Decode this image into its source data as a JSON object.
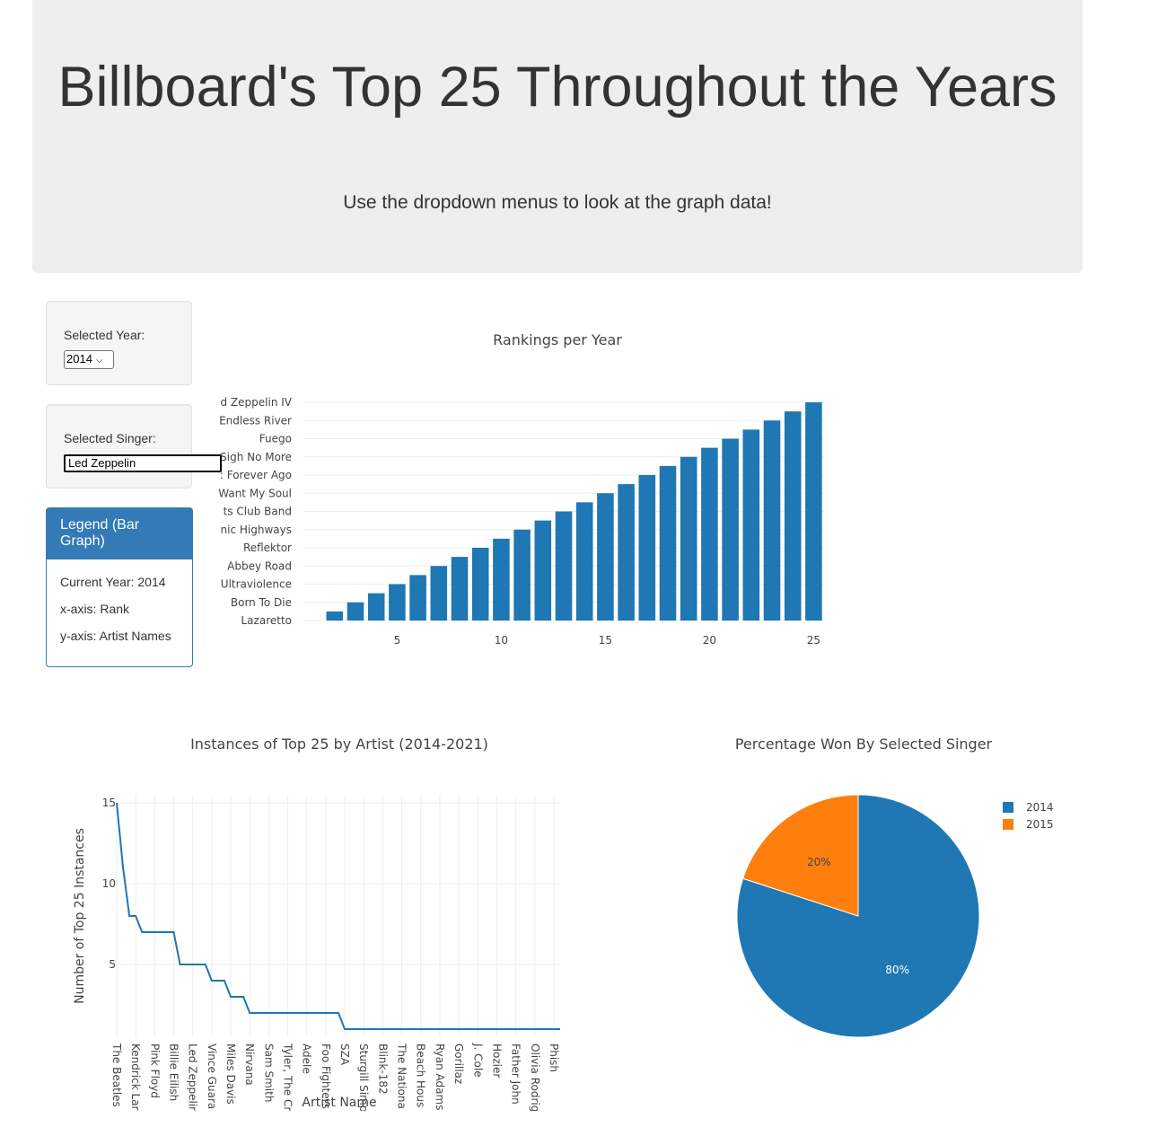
{
  "header": {
    "title": "Billboard's Top 25 Throughout the Years",
    "subtitle": "Use the dropdown menus to look at the graph data!"
  },
  "controls": {
    "year_label": "Selected Year:",
    "year_value": "2014",
    "singer_label": "Selected Singer:",
    "singer_value": "Led Zeppelin"
  },
  "legend_panel": {
    "heading": "Legend (Bar Graph)",
    "current_year": "Current Year: 2014",
    "x_axis": "x-axis: Rank",
    "y_axis": "y-axis: Artist Names"
  },
  "colors": {
    "blue": "#1f77b4",
    "orange": "#ff7f0e",
    "panel": "#337ab7"
  },
  "chart_data": [
    {
      "type": "bar",
      "title": "Rankings per Year",
      "xlim": [
        0.5,
        25.5
      ],
      "x_ticks": [
        5,
        10,
        15,
        20,
        25
      ],
      "y_tick_labels": [
        "Lazaretto",
        "Born To Die",
        "Ultraviolence",
        "Abbey Road",
        "Reflektor",
        "nic Highways",
        "ts Club Band",
        "Want My Soul",
        ": Forever Ago",
        "Sigh No More",
        "Fuego",
        "Endless River",
        "d Zeppelin IV"
      ],
      "x": [
        2,
        3,
        4,
        5,
        6,
        7,
        8,
        9,
        10,
        11,
        12,
        13,
        14,
        15,
        16,
        17,
        18,
        19,
        20,
        21,
        22,
        23,
        24,
        25
      ],
      "values": [
        0.5,
        1,
        1.5,
        2,
        2.5,
        3,
        3.5,
        4,
        4.5,
        5,
        5.5,
        6,
        6.5,
        7,
        7.5,
        8,
        8.5,
        9,
        9.5,
        10,
        10.5,
        11,
        11.5,
        12
      ]
    },
    {
      "type": "line",
      "title": "Instances of Top 25 by Artist (2014-2021)",
      "xlabel": "Artist Name",
      "ylabel": "Number of Top 25 Instances",
      "y_ticks": [
        5,
        10,
        15
      ],
      "ylim": [
        0.5,
        15.5
      ],
      "tick_labels": [
        "The Beatles",
        "Kendrick Lar",
        "Pink Floyd",
        "Billie Eilish",
        "Led Zeppelir",
        "Vince Guara",
        "Miles Davis",
        "Nirvana",
        "Sam Smith",
        "Tyler, The Cr",
        "Adele",
        "Foo Fighters",
        "SZA",
        "Sturgill Simp",
        "Blink-182",
        "The Nationa",
        "Beach Hous",
        "Ryan Adams",
        "Gorillaz",
        "J. Cole",
        "Hozier",
        "Father John",
        "Olivia Rodrig",
        "Phish"
      ],
      "values": [
        15,
        11,
        8,
        8,
        7,
        7,
        7,
        7,
        7,
        7,
        5,
        5,
        5,
        5,
        5,
        4,
        4,
        4,
        3,
        3,
        3,
        2,
        2,
        2,
        2,
        2,
        2,
        2,
        2,
        2,
        2,
        2,
        2,
        2,
        2,
        2,
        1,
        1,
        1,
        1,
        1,
        1,
        1,
        1,
        1,
        1,
        1,
        1,
        1,
        1,
        1,
        1,
        1,
        1,
        1,
        1,
        1,
        1,
        1,
        1,
        1,
        1,
        1,
        1,
        1,
        1,
        1,
        1,
        1,
        1,
        1
      ]
    },
    {
      "type": "pie",
      "title": "Percentage Won By Selected Singer",
      "labels": [
        "2014",
        "2015"
      ],
      "values": [
        80,
        20
      ],
      "text": [
        "80%",
        "20%"
      ],
      "legend_position": "top-right"
    }
  ]
}
